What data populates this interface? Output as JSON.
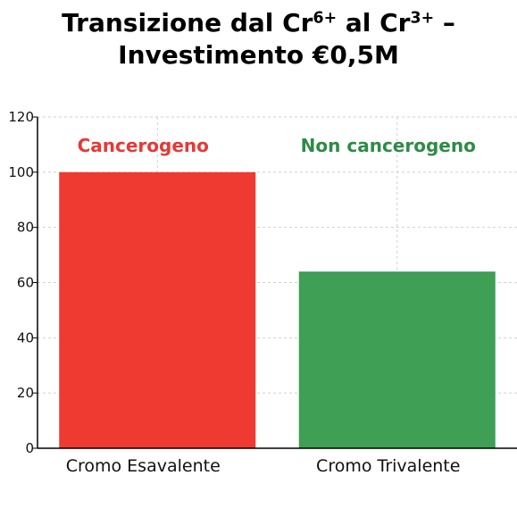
{
  "title": {
    "line1_pre": "Transizione dal Cr",
    "line1_sup1": "6+",
    "line1_mid": " al Cr",
    "line1_sup2": "3+",
    "line1_post": " –",
    "line2": "Investimento €0,5M"
  },
  "chart_data": {
    "type": "bar",
    "title": "Transizione dal Cr6+ al Cr3+ – Investimento €0,5M",
    "xlabel": "",
    "ylabel": "",
    "ylim": [
      0,
      120
    ],
    "yticks": [
      0,
      20,
      40,
      60,
      80,
      100,
      120
    ],
    "grid": true,
    "categories": [
      "Cromo Esavalente",
      "Cromo Trivalente"
    ],
    "values": [
      100,
      64
    ],
    "colors": [
      "#ee3a30",
      "#3e9f55"
    ],
    "annotations": [
      "Cancerogeno",
      "Non cancerogeno"
    ],
    "annotation_colors": [
      "#e53935",
      "#2e8b46"
    ]
  }
}
